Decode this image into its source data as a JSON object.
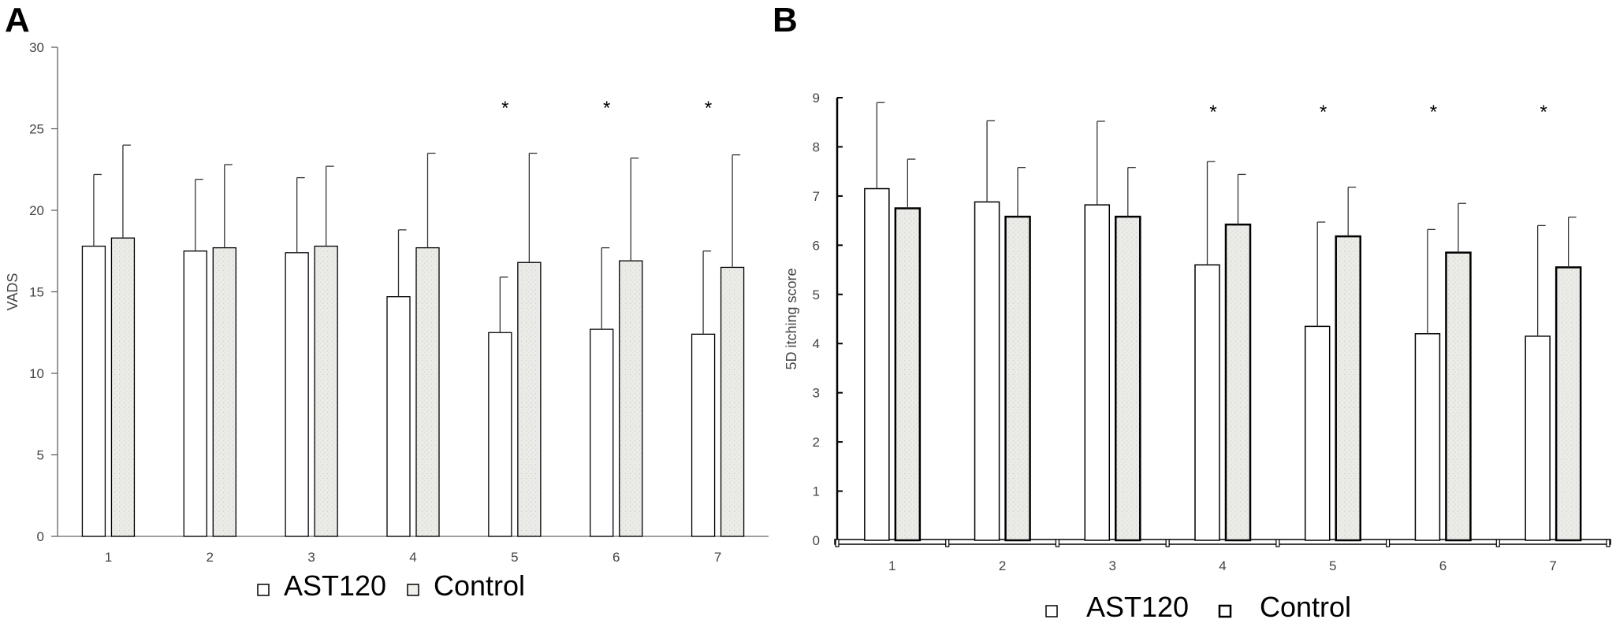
{
  "chart_data": [
    {
      "panel": "A",
      "type": "bar",
      "ylabel": "VADS",
      "xlabel": "",
      "ylim": [
        0,
        30
      ],
      "yticks": [
        0,
        5,
        10,
        15,
        20,
        25,
        30
      ],
      "categories": [
        "1",
        "2",
        "3",
        "4",
        "5",
        "6",
        "7"
      ],
      "series": [
        {
          "name": "AST120",
          "values": [
            17.8,
            17.5,
            17.4,
            14.7,
            12.5,
            12.7,
            12.4
          ],
          "error": [
            4.4,
            4.4,
            4.6,
            4.1,
            3.4,
            5.0,
            5.1
          ]
        },
        {
          "name": "Control",
          "values": [
            18.3,
            17.7,
            17.8,
            17.7,
            16.8,
            16.9,
            16.5
          ],
          "error": [
            5.7,
            5.1,
            4.9,
            5.8,
            6.7,
            6.3,
            6.9
          ]
        }
      ],
      "significance": [
        "",
        "",
        "",
        "",
        "*",
        "*",
        "*"
      ],
      "legend": [
        "AST120",
        "Control"
      ],
      "legend_position": "bottom",
      "grid": false
    },
    {
      "panel": "B",
      "type": "bar",
      "ylabel": "5D itching score",
      "xlabel": "",
      "ylim": [
        0,
        9
      ],
      "yticks": [
        0,
        1,
        2,
        3,
        4,
        5,
        6,
        7,
        8,
        9
      ],
      "categories": [
        "1",
        "2",
        "3",
        "4",
        "5",
        "6",
        "7"
      ],
      "series": [
        {
          "name": "AST120",
          "values": [
            7.15,
            6.88,
            6.82,
            5.6,
            4.35,
            4.2,
            4.15
          ],
          "error": [
            1.75,
            1.65,
            1.7,
            2.1,
            2.12,
            2.12,
            2.25
          ]
        },
        {
          "name": "Control",
          "values": [
            6.75,
            6.58,
            6.58,
            6.42,
            6.18,
            5.85,
            5.55
          ],
          "error": [
            1.0,
            1.0,
            1.0,
            1.02,
            1.0,
            1.0,
            1.02
          ]
        }
      ],
      "significance": [
        "",
        "",
        "",
        "*",
        "*",
        "*",
        "*"
      ],
      "legend": [
        "AST120",
        "Control"
      ],
      "legend_position": "bottom",
      "grid": false
    }
  ],
  "colors": {
    "ast120_fill": "#ffffff",
    "control_fill": "#e9e9e6",
    "bar_stroke": "#000000",
    "axis": "#000000",
    "error_bar": "#333333"
  }
}
